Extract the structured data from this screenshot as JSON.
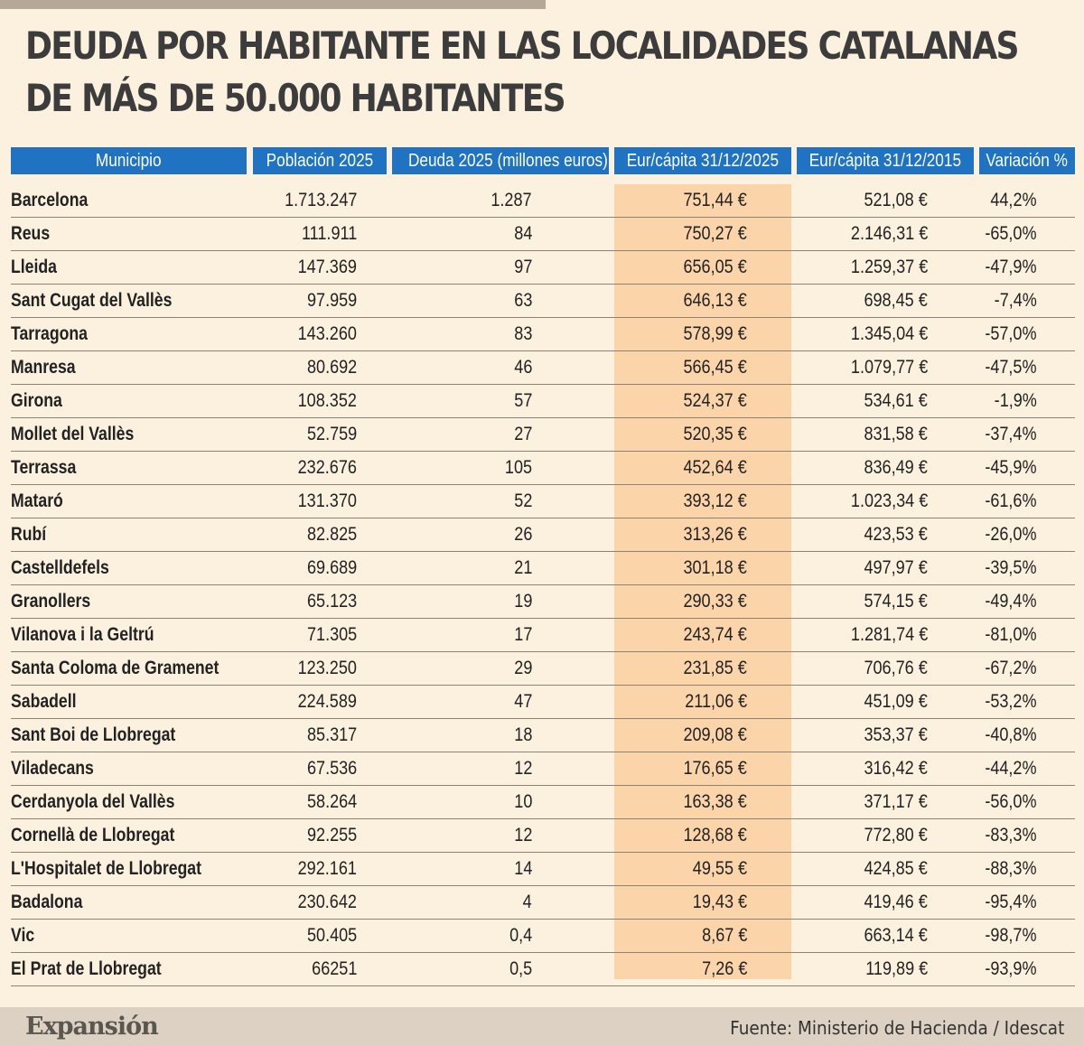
{
  "title_line1": "DEUDA POR HABITANTE EN LAS LOCALIDADES CATALANAS",
  "title_line2": "DE MÁS DE 50.000 HABITANTES",
  "footer": {
    "logo": "Expansión",
    "source": "Fuente: Ministerio de Hacienda / Idescat"
  },
  "colors": {
    "header_bg": "#1f73c2",
    "highlight_column": "#fbd4aa",
    "background": "#fcf1df"
  },
  "chart_data": {
    "type": "table",
    "columns": [
      "Municipio",
      "Población 2025",
      "Deuda 2025 (millones euros)",
      "Eur/cápita 31/12/2025",
      "Eur/cápita 31/12/2015",
      "Variación %"
    ],
    "highlighted_column": "Eur/cápita 31/12/2025",
    "rows": [
      [
        "Barcelona",
        "1.713.247",
        "1.287",
        "751,44 €",
        "521,08 €",
        "44,2%"
      ],
      [
        "Reus",
        "111.911",
        "84",
        "750,27 €",
        "2.146,31 €",
        "-65,0%"
      ],
      [
        "Lleida",
        "147.369",
        "97",
        "656,05 €",
        "1.259,37 €",
        "-47,9%"
      ],
      [
        "Sant Cugat del Vallès",
        "97.959",
        "63",
        "646,13 €",
        "698,45 €",
        "-7,4%"
      ],
      [
        "Tarragona",
        "143.260",
        "83",
        "578,99 €",
        "1.345,04 €",
        "-57,0%"
      ],
      [
        "Manresa",
        "80.692",
        "46",
        "566,45 €",
        "1.079,77 €",
        "-47,5%"
      ],
      [
        "Girona",
        "108.352",
        "57",
        "524,37 €",
        "534,61 €",
        "-1,9%"
      ],
      [
        "Mollet del Vallès",
        "52.759",
        "27",
        "520,35 €",
        "831,58 €",
        "-37,4%"
      ],
      [
        "Terrassa",
        "232.676",
        "105",
        "452,64 €",
        "836,49 €",
        "-45,9%"
      ],
      [
        "Mataró",
        "131.370",
        "52",
        "393,12 €",
        "1.023,34 €",
        "-61,6%"
      ],
      [
        "Rubí",
        "82.825",
        "26",
        "313,26 €",
        "423,53 €",
        "-26,0%"
      ],
      [
        "Castelldefels",
        "69.689",
        "21",
        "301,18 €",
        "497,97 €",
        "-39,5%"
      ],
      [
        "Granollers",
        "65.123",
        "19",
        "290,33 €",
        "574,15 €",
        "-49,4%"
      ],
      [
        "Vilanova i la Geltrú",
        "71.305",
        "17",
        "243,74 €",
        "1.281,74 €",
        "-81,0%"
      ],
      [
        "Santa Coloma de Gramenet",
        "123.250",
        "29",
        "231,85 €",
        "706,76 €",
        "-67,2%"
      ],
      [
        "Sabadell",
        "224.589",
        "47",
        "211,06 €",
        "451,09 €",
        "-53,2%"
      ],
      [
        "Sant Boi de Llobregat",
        "85.317",
        "18",
        "209,08 €",
        "353,37 €",
        "-40,8%"
      ],
      [
        "Viladecans",
        "67.536",
        "12",
        "176,65 €",
        "316,42 €",
        "-44,2%"
      ],
      [
        "Cerdanyola del Vallès",
        "58.264",
        "10",
        "163,38 €",
        "371,17 €",
        "-56,0%"
      ],
      [
        "Cornellà de Llobregat",
        "92.255",
        "12",
        "128,68 €",
        "772,80 €",
        "-83,3%"
      ],
      [
        "L'Hospitalet de Llobregat",
        "292.161",
        "14",
        "49,55 €",
        "424,85 €",
        "-88,3%"
      ],
      [
        "Badalona",
        "230.642",
        "4",
        "19,43 €",
        "419,46 €",
        "-95,4%"
      ],
      [
        "Vic",
        "50.405",
        "0,4",
        "8,67 €",
        "663,14 €",
        "-98,7%"
      ],
      [
        "El Prat de Llobregat",
        "66251",
        "0,5",
        "7,26 €",
        "119,89 €",
        "-93,9%"
      ]
    ]
  }
}
